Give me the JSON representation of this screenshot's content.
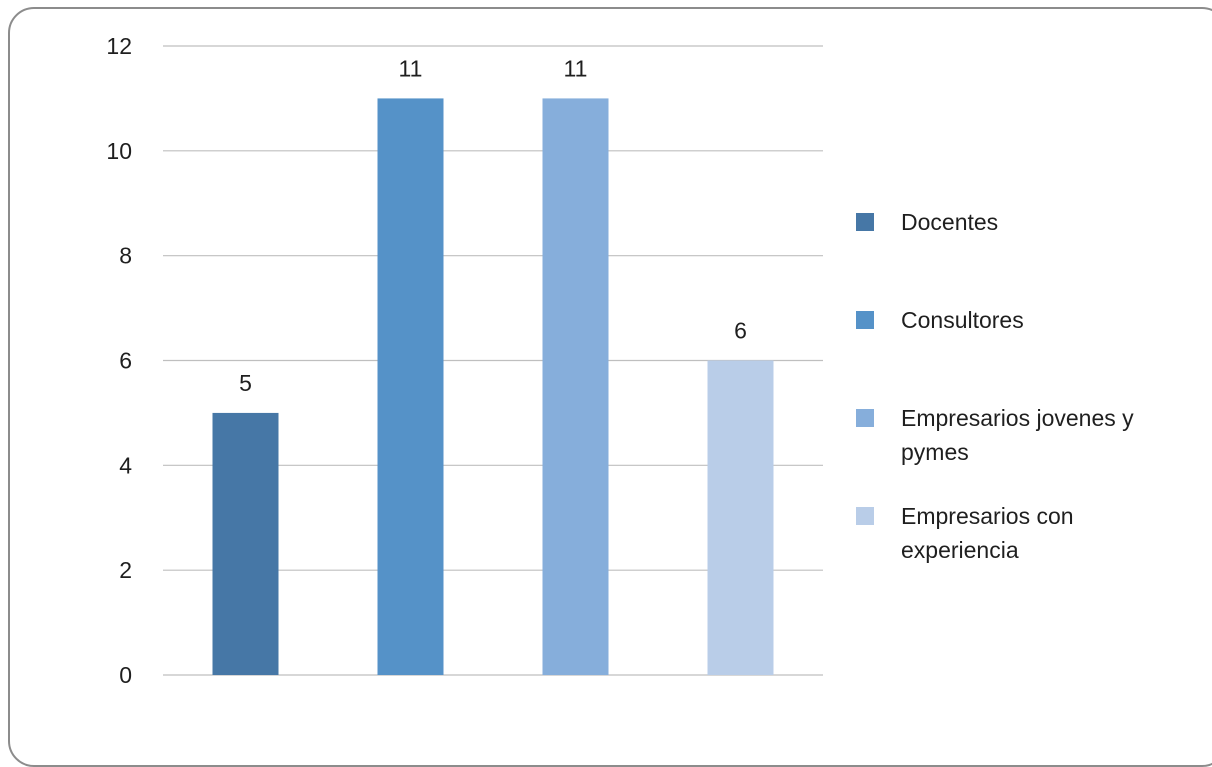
{
  "chart_data": {
    "type": "bar",
    "title": "",
    "xlabel": "",
    "ylabel": "",
    "ylim": [
      0,
      12
    ],
    "y_ticks": [
      0,
      2,
      4,
      6,
      8,
      10,
      12
    ],
    "grid": true,
    "legend_position": "right",
    "series": [
      {
        "name": "Docentes",
        "value": 5,
        "label": "5",
        "color": "#4677a6"
      },
      {
        "name": "Consultores",
        "value": 11,
        "label": "11",
        "color": "#5592c8"
      },
      {
        "name": "Empresarios jovenes y pymes",
        "legend_lines": [
          "Empresarios jovenes y",
          "pymes"
        ],
        "value": 11,
        "label": "11",
        "color": "#86aedb"
      },
      {
        "name": "Empresarios con experiencia",
        "legend_lines": [
          "Empresarios con",
          "experiencia"
        ],
        "value": 6,
        "label": "6",
        "color": "#b9cde8"
      }
    ]
  }
}
